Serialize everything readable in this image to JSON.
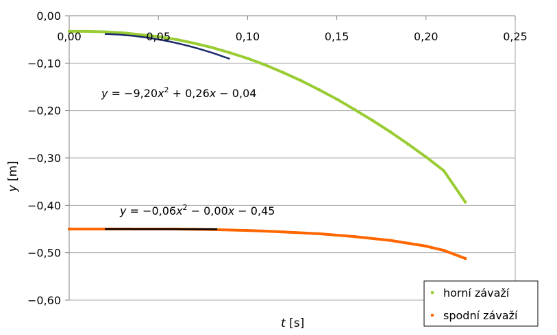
{
  "chart_data": {
    "type": "scatter",
    "xlabel": {
      "var": "t",
      "unit": "[s]"
    },
    "ylabel": {
      "var": "y",
      "unit": "[m]"
    },
    "xlim": [
      0,
      0.25
    ],
    "ylim": [
      -0.6,
      0.0
    ],
    "x_ticks": [
      "0,00",
      "0,05",
      "0,10",
      "0,15",
      "0,20",
      "0,25"
    ],
    "y_ticks": [
      "0,00",
      "−0,10",
      "−0,20",
      "−0,30",
      "−0,40",
      "−0,50",
      "−0,60"
    ],
    "x_tick_values": [
      0,
      0.05,
      0.1,
      0.15,
      0.2,
      0.25
    ],
    "y_tick_values": [
      0,
      -0.1,
      -0.2,
      -0.3,
      -0.4,
      -0.5,
      -0.6
    ],
    "grid": "horizontal",
    "legend_position": "bottom-right",
    "series": [
      {
        "name": "horní závaží",
        "color": "#99cc33",
        "x": [
          0.0,
          0.01,
          0.02,
          0.03,
          0.04,
          0.05,
          0.06,
          0.07,
          0.08,
          0.09,
          0.1,
          0.11,
          0.12,
          0.13,
          0.14,
          0.15,
          0.16,
          0.17,
          0.18,
          0.19,
          0.2,
          0.21,
          0.222
        ],
        "y": [
          -0.033,
          -0.033,
          -0.034,
          -0.036,
          -0.04,
          -0.044,
          -0.05,
          -0.058,
          -0.067,
          -0.078,
          -0.09,
          -0.104,
          -0.12,
          -0.137,
          -0.156,
          -0.176,
          -0.198,
          -0.221,
          -0.245,
          -0.271,
          -0.298,
          -0.327,
          -0.393
        ]
      },
      {
        "name": "spodní závaží",
        "color": "#ff6600",
        "x": [
          0.0,
          0.02,
          0.04,
          0.06,
          0.08,
          0.1,
          0.12,
          0.14,
          0.16,
          0.18,
          0.2,
          0.21,
          0.222
        ],
        "y": [
          -0.45,
          -0.45,
          -0.45,
          -0.45,
          -0.451,
          -0.453,
          -0.456,
          -0.46,
          -0.466,
          -0.474,
          -0.486,
          -0.495,
          -0.512
        ]
      }
    ],
    "trendlines": [
      {
        "equation": "y = −9,20x² + 0,26x − 0,04",
        "color": "#1a2a6c",
        "x_range": [
          0.02,
          0.09
        ],
        "coef": [
          -9.2,
          0.26,
          -0.04
        ]
      },
      {
        "equation": "y = −0,06x² − 0,00x − 0,45",
        "color": "#000000",
        "x_range": [
          0.02,
          0.083
        ],
        "coef": [
          -0.06,
          0.0,
          -0.45
        ]
      }
    ],
    "equation_labels": {
      "upper": {
        "y": "y",
        "eq": " = −9,20",
        "x": "x",
        "sq": "2",
        "rest": " + 0,26",
        "x2": "x",
        "tail": " − 0,04"
      },
      "lower": {
        "y": "y",
        "eq": " = −0,06",
        "x": "x",
        "sq": "2",
        "rest": " − 0,00",
        "x2": "x",
        "tail": " − 0,45"
      }
    }
  }
}
